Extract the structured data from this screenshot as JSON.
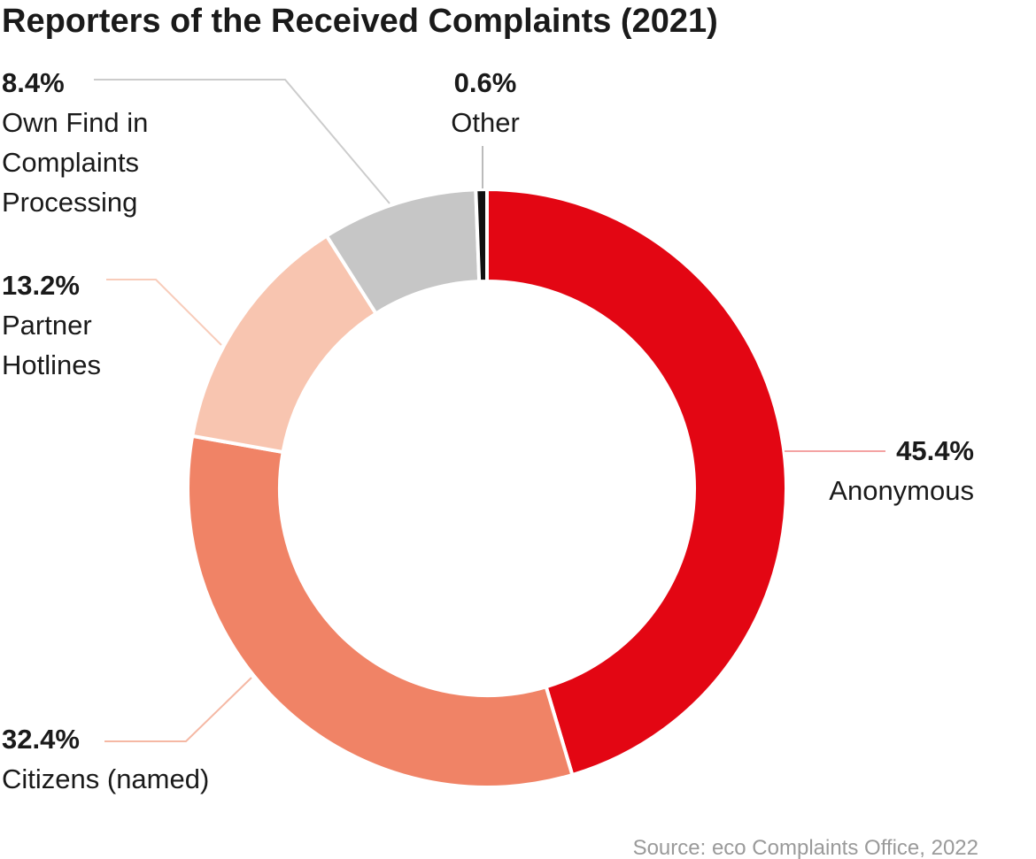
{
  "chart_data": {
    "type": "pie",
    "variant": "donut",
    "title": "Reporters of the Received Complaints (2021)",
    "source": "Source: eco Complaints Office, 2022",
    "slices": [
      {
        "label_lines": [
          "Anonymous"
        ],
        "value": 45.4,
        "value_label": "45.4%",
        "color": "#e30613",
        "leader_color": "#f4a3a3"
      },
      {
        "label_lines": [
          "Citizens (named)"
        ],
        "value": 32.4,
        "value_label": "32.4%",
        "color": "#f08366",
        "leader_color": "#f5b8a4"
      },
      {
        "label_lines": [
          "Partner",
          "Hotlines"
        ],
        "value": 13.2,
        "value_label": "13.2%",
        "color": "#f8c5b0",
        "leader_color": "#f8ccba"
      },
      {
        "label_lines": [
          "Own Find in",
          "Complaints",
          "Processing"
        ],
        "value": 8.4,
        "value_label": "8.4%",
        "color": "#c6c6c6",
        "leader_color": "#cccccc"
      },
      {
        "label_lines": [
          "Other"
        ],
        "value": 0.6,
        "value_label": "0.6%",
        "color": "#111111",
        "leader_color": "#bbbbbb"
      }
    ]
  }
}
